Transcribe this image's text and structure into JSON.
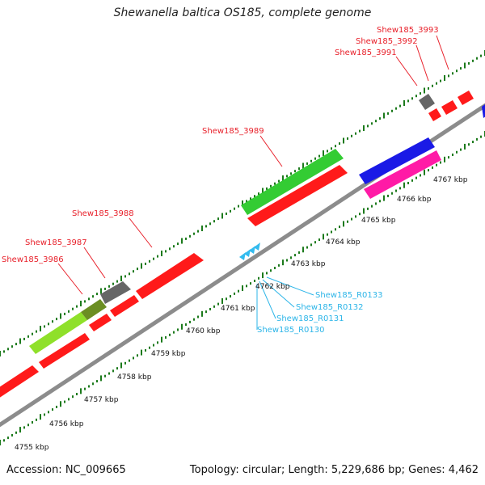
{
  "title": "Shewanella baltica OS185, complete genome",
  "footer": {
    "accession": "Accession: NC_009665",
    "summary": "Topology: circular; Length: 5,229,686 bp; Genes: 4,462"
  },
  "colors": {
    "backbone": "#8c8c8c",
    "tick": "#1c7a1c",
    "gene_red": "#ff1a1a",
    "gene_green": "#33cc33",
    "gene_lime": "#8fe02a",
    "gene_gray": "#666666",
    "gene_blue": "#1a1ae6",
    "gene_magenta": "#ff1aa6",
    "rna_cyan": "#33bbee",
    "label_red": "#e8202a",
    "label_cyan": "#2cb5e8"
  },
  "kbp_labels": [
    "4755 kbp",
    "4756 kbp",
    "4757 kbp",
    "4758 kbp",
    "4759 kbp",
    "4760 kbp",
    "4761 kbp",
    "4762 kbp",
    "4763 kbp",
    "4764 kbp",
    "4765 kbp",
    "4766 kbp",
    "4767 kbp"
  ],
  "gene_labels": [
    {
      "text": "Shew185_3993"
    },
    {
      "text": "Shew185_3992"
    },
    {
      "text": "Shew185_3991"
    },
    {
      "text": "Shew185_3989"
    },
    {
      "text": "Shew185_3988"
    },
    {
      "text": "Shew185_3987"
    },
    {
      "text": "Shew185_3986"
    }
  ],
  "rna_labels": [
    {
      "text": "Shew185_R0133"
    },
    {
      "text": "Shew185_R0132"
    },
    {
      "text": "Shew185_R0131"
    },
    {
      "text": "Shew185_R0130"
    }
  ]
}
